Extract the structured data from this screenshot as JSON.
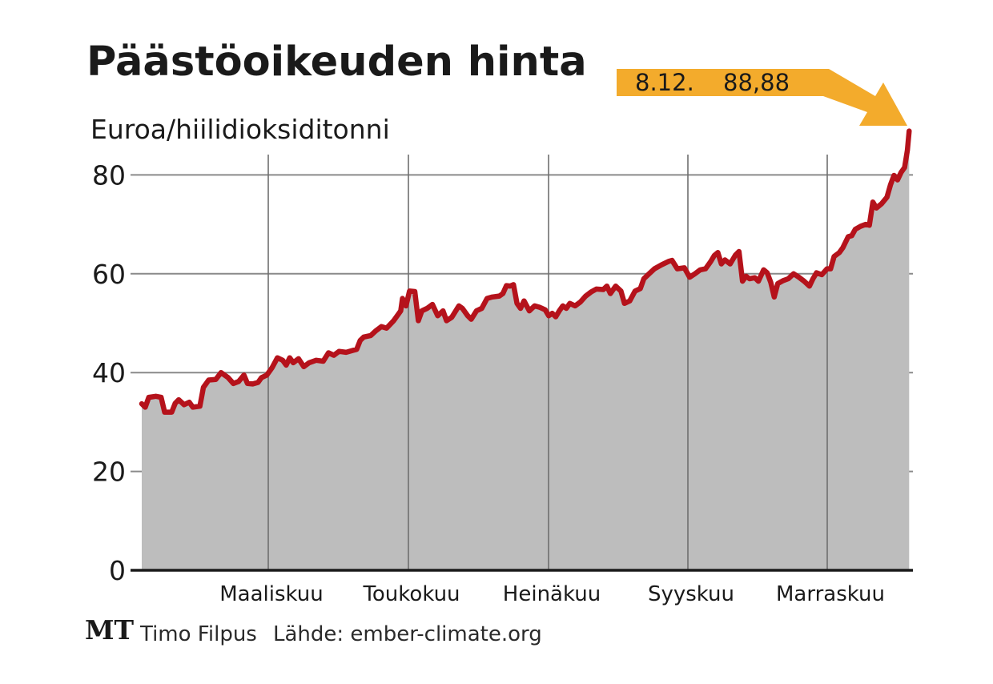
{
  "chart_data": {
    "type": "area",
    "title": "Päästöoikeuden hinta",
    "ylabel": "Euroa/hiilidioksiditonni",
    "ylim": [
      0,
      90
    ],
    "yticks": [
      0,
      20,
      40,
      60,
      80
    ],
    "month_labels": [
      "Maaliskuu",
      "Toukokuu",
      "Heinäkuu",
      "Syyskuu",
      "Marraskuu"
    ],
    "grid": true,
    "callout": {
      "date": "8.12.",
      "value": "88,88"
    },
    "series": [
      {
        "color": "#b5121b",
        "fill": "#bdbdbd",
        "points": [
          [
            0.0,
            33.7
          ],
          [
            1.0,
            33.0
          ],
          [
            2.0,
            35.0
          ],
          [
            4.0,
            35.2
          ],
          [
            5.5,
            35.0
          ],
          [
            6.5,
            32.0
          ],
          [
            8.5,
            32.0
          ],
          [
            9.5,
            33.8
          ],
          [
            10.5,
            34.5
          ],
          [
            12.0,
            33.5
          ],
          [
            13.5,
            34.0
          ],
          [
            14.5,
            33.0
          ],
          [
            16.5,
            33.2
          ],
          [
            17.5,
            37.0
          ],
          [
            19.0,
            38.5
          ],
          [
            21.0,
            38.6
          ],
          [
            22.5,
            40.0
          ],
          [
            24.5,
            39.0
          ],
          [
            26.0,
            37.8
          ],
          [
            27.5,
            38.2
          ],
          [
            29.0,
            39.5
          ],
          [
            30.0,
            37.8
          ],
          [
            31.5,
            37.7
          ],
          [
            33.0,
            38.0
          ],
          [
            34.0,
            39.0
          ],
          [
            35.5,
            39.5
          ],
          [
            37.0,
            41.0
          ],
          [
            38.5,
            43.0
          ],
          [
            40.0,
            42.5
          ],
          [
            41.0,
            41.5
          ],
          [
            42.0,
            43.0
          ],
          [
            43.0,
            42.0
          ],
          [
            44.5,
            42.8
          ],
          [
            46.0,
            41.2
          ],
          [
            47.5,
            42.0
          ],
          [
            49.5,
            42.5
          ],
          [
            51.5,
            42.3
          ],
          [
            53.0,
            44.0
          ],
          [
            54.5,
            43.5
          ],
          [
            56.0,
            44.3
          ],
          [
            58.0,
            44.1
          ],
          [
            60.0,
            44.5
          ],
          [
            61.0,
            44.7
          ],
          [
            62.0,
            46.5
          ],
          [
            63.0,
            47.2
          ],
          [
            65.0,
            47.5
          ],
          [
            66.5,
            48.5
          ],
          [
            68.0,
            49.3
          ],
          [
            69.5,
            49.0
          ],
          [
            71.5,
            50.5
          ],
          [
            73.5,
            52.5
          ],
          [
            74.0,
            55.0
          ],
          [
            75.0,
            53.5
          ],
          [
            76.0,
            56.5
          ],
          [
            77.5,
            56.4
          ],
          [
            78.5,
            50.5
          ],
          [
            79.5,
            52.5
          ],
          [
            81.0,
            53.0
          ],
          [
            82.5,
            53.8
          ],
          [
            84.0,
            51.5
          ],
          [
            85.5,
            52.5
          ],
          [
            86.5,
            50.5
          ],
          [
            88.0,
            51.2
          ],
          [
            90.0,
            53.5
          ],
          [
            91.0,
            53.0
          ],
          [
            92.5,
            51.5
          ],
          [
            93.5,
            50.8
          ],
          [
            95.0,
            52.5
          ],
          [
            96.5,
            53.0
          ],
          [
            98.0,
            55.0
          ],
          [
            99.5,
            55.3
          ],
          [
            101.5,
            55.5
          ],
          [
            102.5,
            56.0
          ],
          [
            103.5,
            57.6
          ],
          [
            104.5,
            57.5
          ],
          [
            105.5,
            57.8
          ],
          [
            106.5,
            54.0
          ],
          [
            107.5,
            53.0
          ],
          [
            108.5,
            54.5
          ],
          [
            110.0,
            52.5
          ],
          [
            111.5,
            53.5
          ],
          [
            113.0,
            53.2
          ],
          [
            114.5,
            52.7
          ],
          [
            115.5,
            51.5
          ],
          [
            116.5,
            52.0
          ],
          [
            117.5,
            51.3
          ],
          [
            118.5,
            52.5
          ],
          [
            119.5,
            53.5
          ],
          [
            120.5,
            53.0
          ],
          [
            121.5,
            54.0
          ],
          [
            123.0,
            53.5
          ],
          [
            124.5,
            54.3
          ],
          [
            126.0,
            55.5
          ],
          [
            127.5,
            56.3
          ],
          [
            129.0,
            56.9
          ],
          [
            131.0,
            56.8
          ],
          [
            132.0,
            57.5
          ],
          [
            133.0,
            56.0
          ],
          [
            134.5,
            57.5
          ],
          [
            136.0,
            56.5
          ],
          [
            137.0,
            54.0
          ],
          [
            138.5,
            54.5
          ],
          [
            140.0,
            56.5
          ],
          [
            141.5,
            57.0
          ],
          [
            142.5,
            59.0
          ],
          [
            144.0,
            60.0
          ],
          [
            145.5,
            61.0
          ],
          [
            147.5,
            61.8
          ],
          [
            149.5,
            62.5
          ],
          [
            150.5,
            62.7
          ],
          [
            152.0,
            61.0
          ],
          [
            154.0,
            61.2
          ],
          [
            155.5,
            59.3
          ],
          [
            157.0,
            60.0
          ],
          [
            158.5,
            60.8
          ],
          [
            160.0,
            61.0
          ],
          [
            161.5,
            62.5
          ],
          [
            162.5,
            63.7
          ],
          [
            163.5,
            64.3
          ],
          [
            164.5,
            62.0
          ],
          [
            165.5,
            62.8
          ],
          [
            167.0,
            62.0
          ],
          [
            168.5,
            63.8
          ],
          [
            169.5,
            64.5
          ],
          [
            170.5,
            58.5
          ],
          [
            171.5,
            59.5
          ],
          [
            172.5,
            59.0
          ],
          [
            174.0,
            59.2
          ],
          [
            175.0,
            58.5
          ],
          [
            176.5,
            60.8
          ],
          [
            177.5,
            60.2
          ],
          [
            178.5,
            58.3
          ],
          [
            179.5,
            55.3
          ],
          [
            180.5,
            58.0
          ],
          [
            182.0,
            58.6
          ],
          [
            183.5,
            59.0
          ],
          [
            185.0,
            60.0
          ],
          [
            186.5,
            59.3
          ],
          [
            188.0,
            58.5
          ],
          [
            189.5,
            57.5
          ],
          [
            190.5,
            59.0
          ],
          [
            191.5,
            60.2
          ],
          [
            193.0,
            59.8
          ],
          [
            194.5,
            61.0
          ],
          [
            195.5,
            61.0
          ],
          [
            196.5,
            63.5
          ],
          [
            198.0,
            64.3
          ],
          [
            199.0,
            65.3
          ],
          [
            200.5,
            67.5
          ],
          [
            201.5,
            67.7
          ],
          [
            202.5,
            69.0
          ],
          [
            204.0,
            69.6
          ],
          [
            205.5,
            70.0
          ],
          [
            206.5,
            69.8
          ],
          [
            207.5,
            74.5
          ],
          [
            208.5,
            73.3
          ],
          [
            210.0,
            74.2
          ],
          [
            211.5,
            75.5
          ],
          [
            212.5,
            78.0
          ],
          [
            213.5,
            79.9
          ],
          [
            214.5,
            79.0
          ],
          [
            215.5,
            80.5
          ],
          [
            216.5,
            81.5
          ],
          [
            217.3,
            85.0
          ],
          [
            217.8,
            88.88
          ]
        ]
      }
    ]
  },
  "footer": {
    "logo": "MT",
    "author": "Timo Filpus",
    "source": "Lähde: ember-climate.org"
  }
}
